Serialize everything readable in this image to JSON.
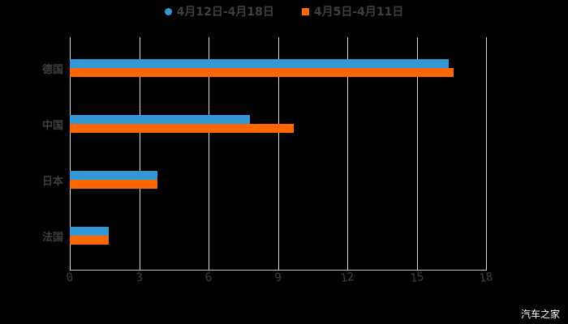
{
  "chart_data": {
    "type": "bar",
    "orientation": "horizontal",
    "title": "",
    "categories": [
      "德国",
      "中国",
      "日本",
      "法国"
    ],
    "series": [
      {
        "name": "4月12日-4月18日",
        "color": "#3399d6",
        "values": [
          16.4,
          7.8,
          3.8,
          1.7
        ]
      },
      {
        "name": "4月5日-4月11日",
        "color": "#ff6600",
        "values": [
          16.6,
          9.7,
          3.8,
          1.7
        ]
      }
    ],
    "xlabel": "",
    "ylabel": "",
    "xlim": [
      0,
      18
    ],
    "xticks": [
      "0",
      "3",
      "6",
      "9",
      "12",
      "15",
      "18"
    ],
    "grid": true,
    "legend_position": "top"
  },
  "legend": {
    "item1": "4月12日-4月18日",
    "item2": "4月5日-4月11日"
  },
  "watermark": "汽车之家"
}
